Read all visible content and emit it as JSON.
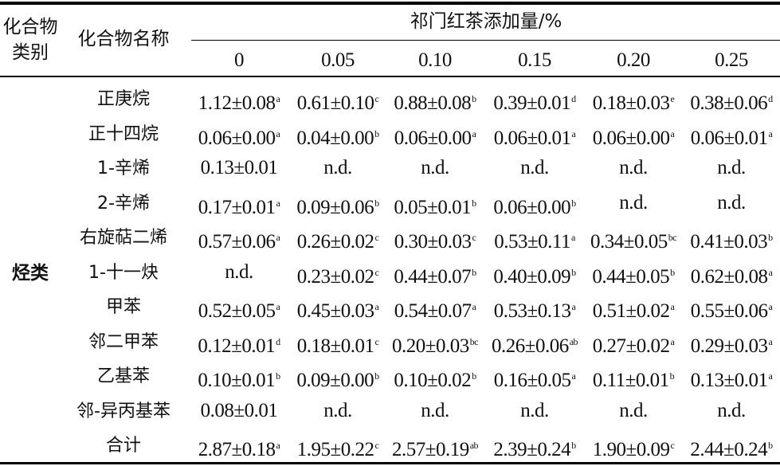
{
  "header": {
    "col_category": "化合物\n类别",
    "col_category_line1": "化合物",
    "col_category_line2": "类别",
    "col_name": "化合物名称",
    "group_title": "祁门红茶添加量/%",
    "doses": [
      "0",
      "0.05",
      "0.10",
      "0.15",
      "0.20",
      "0.25"
    ]
  },
  "category": "烃类",
  "rows": [
    {
      "name": "正庚烷",
      "cells": [
        {
          "v": "1.12±0.08",
          "s": "a"
        },
        {
          "v": "0.61±0.10",
          "s": "c"
        },
        {
          "v": "0.88±0.08",
          "s": "b"
        },
        {
          "v": "0.39±0.01",
          "s": "d"
        },
        {
          "v": "0.18±0.03",
          "s": "e"
        },
        {
          "v": "0.38±0.06",
          "s": "d"
        }
      ]
    },
    {
      "name": "正十四烷",
      "cells": [
        {
          "v": "0.06±0.00",
          "s": "a"
        },
        {
          "v": "0.04±0.00",
          "s": "b"
        },
        {
          "v": "0.06±0.00",
          "s": "a"
        },
        {
          "v": "0.06±0.01",
          "s": "a"
        },
        {
          "v": "0.06±0.00",
          "s": "a"
        },
        {
          "v": "0.06±0.01",
          "s": "a"
        }
      ]
    },
    {
      "name": "1-辛烯",
      "cells": [
        {
          "v": "0.13±0.01",
          "s": ""
        },
        {
          "v": "n.d.",
          "s": ""
        },
        {
          "v": "n.d.",
          "s": ""
        },
        {
          "v": "n.d.",
          "s": ""
        },
        {
          "v": "n.d.",
          "s": ""
        },
        {
          "v": "n.d.",
          "s": ""
        }
      ]
    },
    {
      "name": "2-辛烯",
      "cells": [
        {
          "v": "0.17±0.01",
          "s": "a"
        },
        {
          "v": "0.09±0.06",
          "s": "b"
        },
        {
          "v": "0.05±0.01",
          "s": "b"
        },
        {
          "v": "0.06±0.00",
          "s": "b"
        },
        {
          "v": "n.d.",
          "s": ""
        },
        {
          "v": "n.d.",
          "s": ""
        }
      ]
    },
    {
      "name": "右旋萜二烯",
      "cells": [
        {
          "v": "0.57±0.06",
          "s": "a"
        },
        {
          "v": "0.26±0.02",
          "s": "c"
        },
        {
          "v": "0.30±0.03",
          "s": "c"
        },
        {
          "v": "0.53±0.11",
          "s": "a"
        },
        {
          "v": "0.34±0.05",
          "s": "bc"
        },
        {
          "v": "0.41±0.03",
          "s": "b"
        }
      ]
    },
    {
      "name": "1-十一炔",
      "cells": [
        {
          "v": "n.d.",
          "s": ""
        },
        {
          "v": "0.23±0.02",
          "s": "c"
        },
        {
          "v": "0.44±0.07",
          "s": "b"
        },
        {
          "v": "0.40±0.09",
          "s": "b"
        },
        {
          "v": "0.44±0.05",
          "s": "b"
        },
        {
          "v": "0.62±0.08",
          "s": "a"
        }
      ]
    },
    {
      "name": "甲苯",
      "cells": [
        {
          "v": "0.52±0.05",
          "s": "a"
        },
        {
          "v": "0.45±0.03",
          "s": "a"
        },
        {
          "v": "0.54±0.07",
          "s": "a"
        },
        {
          "v": "0.53±0.13",
          "s": "a"
        },
        {
          "v": "0.51±0.02",
          "s": "a"
        },
        {
          "v": "0.55±0.06",
          "s": "a"
        }
      ]
    },
    {
      "name": "邻二甲苯",
      "cells": [
        {
          "v": "0.12±0.01",
          "s": "d"
        },
        {
          "v": "0.18±0.01",
          "s": "c"
        },
        {
          "v": "0.20±0.03",
          "s": "bc"
        },
        {
          "v": "0.26±0.06",
          "s": "ab"
        },
        {
          "v": "0.27±0.02",
          "s": "a"
        },
        {
          "v": "0.29±0.03",
          "s": "a"
        }
      ]
    },
    {
      "name": "乙基苯",
      "cells": [
        {
          "v": "0.10±0.01",
          "s": "b"
        },
        {
          "v": "0.09±0.00",
          "s": "b"
        },
        {
          "v": "0.10±0.02",
          "s": "b"
        },
        {
          "v": "0.16±0.05",
          "s": "a"
        },
        {
          "v": "0.11±0.01",
          "s": "b"
        },
        {
          "v": "0.13±0.01",
          "s": "a"
        }
      ]
    },
    {
      "name": "邻-异丙基苯",
      "cells": [
        {
          "v": "0.08±0.01",
          "s": ""
        },
        {
          "v": "n.d.",
          "s": ""
        },
        {
          "v": "n.d.",
          "s": ""
        },
        {
          "v": "n.d.",
          "s": ""
        },
        {
          "v": "n.d.",
          "s": ""
        },
        {
          "v": "n.d.",
          "s": ""
        }
      ]
    },
    {
      "name": "合计",
      "cells": [
        {
          "v": "2.87±0.18",
          "s": "a"
        },
        {
          "v": "1.95±0.22",
          "s": "c"
        },
        {
          "v": "2.57±0.19",
          "s": "ab"
        },
        {
          "v": "2.39±0.24",
          "s": "b"
        },
        {
          "v": "1.90±0.09",
          "s": "c"
        },
        {
          "v": "2.44±0.24",
          "s": "b"
        }
      ]
    }
  ]
}
